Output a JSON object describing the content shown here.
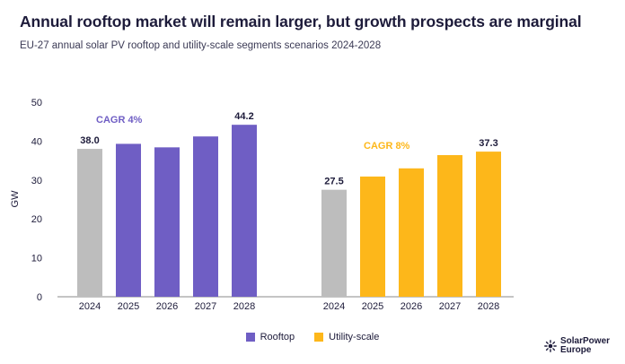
{
  "title": "Annual rooftop market will remain larger, but growth prospects are marginal",
  "subtitle": "EU-27 annual solar PV rooftop and utility-scale segments scenarios 2024-2028",
  "logo_text": "SolarPower Europe",
  "colors": {
    "rooftop": "#6f5ec4",
    "utility": "#fdb71a",
    "historical": "#bdbdbd",
    "rooftop_cagr": "#6f5ec4",
    "utility_cagr": "#fdb71a"
  },
  "chart_data": {
    "type": "bar",
    "ylabel": "GW",
    "ylim": [
      0,
      50
    ],
    "yticks": [
      0,
      10,
      20,
      30,
      40,
      50
    ],
    "grid": false,
    "legend": [
      "Rooftop",
      "Utility-scale"
    ],
    "legend_position": "bottom-center",
    "groups": [
      {
        "name": "Rooftop",
        "categories": [
          "2024",
          "2025",
          "2026",
          "2027",
          "2028"
        ],
        "values": [
          38.0,
          39.3,
          38.4,
          41.2,
          44.2
        ],
        "labels": [
          "38.0",
          "",
          "",
          "",
          "44.2"
        ],
        "cagr": "CAGR 4%"
      },
      {
        "name": "Utility-scale",
        "categories": [
          "2024",
          "2025",
          "2026",
          "2027",
          "2028"
        ],
        "values": [
          27.5,
          30.9,
          33.0,
          36.4,
          37.3
        ],
        "labels": [
          "27.5",
          "",
          "",
          "",
          "37.3"
        ],
        "cagr": "CAGR 8%"
      }
    ]
  }
}
